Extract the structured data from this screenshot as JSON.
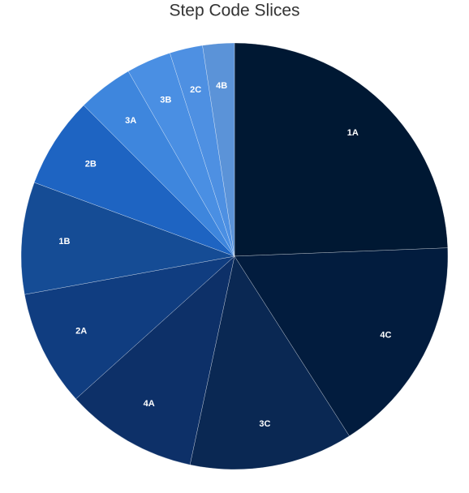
{
  "chart_data": {
    "type": "pie",
    "title": "Step Code Slices",
    "categories": [
      "1A",
      "4C",
      "3C",
      "4A",
      "2A",
      "1B",
      "2B",
      "3A",
      "3B",
      "2C",
      "4B"
    ],
    "values": [
      24.4,
      16.6,
      12.4,
      10,
      8.8,
      8.5,
      6.9,
      4.2,
      3.4,
      2.5,
      2.4
    ],
    "colors": [
      "#001833",
      "#021c3e",
      "#0a2853",
      "#0d3068",
      "#103d80",
      "#154c95",
      "#1e64c2",
      "#3e86dd",
      "#4a8fe3",
      "#4e90e2",
      "#5b93d8"
    ]
  }
}
